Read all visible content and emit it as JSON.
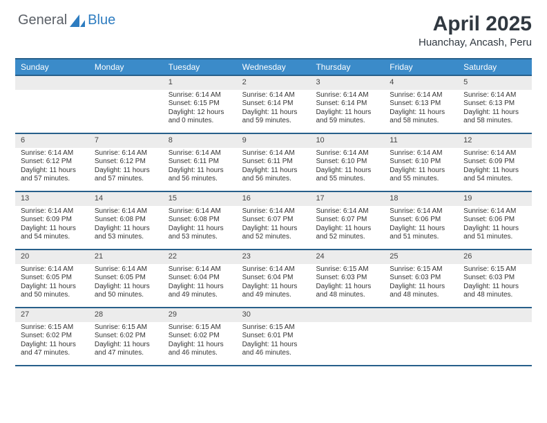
{
  "logo": {
    "word1": "General",
    "word2": "Blue"
  },
  "title": "April 2025",
  "location": "Huanchay, Ancash, Peru",
  "colors": {
    "header": "#3b8bc9",
    "rule": "#275f8a",
    "alt": "#ececec",
    "text": "#333333",
    "title": "#303840",
    "bg": "#ffffff"
  },
  "weekdays": [
    "Sunday",
    "Monday",
    "Tuesday",
    "Wednesday",
    "Thursday",
    "Friday",
    "Saturday"
  ],
  "leadingBlanks": 2,
  "days": [
    {
      "n": 1,
      "l1": "Sunrise: 6:14 AM",
      "l2": "Sunset: 6:15 PM",
      "l3": "Daylight: 12 hours",
      "l4": "and 0 minutes."
    },
    {
      "n": 2,
      "l1": "Sunrise: 6:14 AM",
      "l2": "Sunset: 6:14 PM",
      "l3": "Daylight: 11 hours",
      "l4": "and 59 minutes."
    },
    {
      "n": 3,
      "l1": "Sunrise: 6:14 AM",
      "l2": "Sunset: 6:14 PM",
      "l3": "Daylight: 11 hours",
      "l4": "and 59 minutes."
    },
    {
      "n": 4,
      "l1": "Sunrise: 6:14 AM",
      "l2": "Sunset: 6:13 PM",
      "l3": "Daylight: 11 hours",
      "l4": "and 58 minutes."
    },
    {
      "n": 5,
      "l1": "Sunrise: 6:14 AM",
      "l2": "Sunset: 6:13 PM",
      "l3": "Daylight: 11 hours",
      "l4": "and 58 minutes."
    },
    {
      "n": 6,
      "l1": "Sunrise: 6:14 AM",
      "l2": "Sunset: 6:12 PM",
      "l3": "Daylight: 11 hours",
      "l4": "and 57 minutes."
    },
    {
      "n": 7,
      "l1": "Sunrise: 6:14 AM",
      "l2": "Sunset: 6:12 PM",
      "l3": "Daylight: 11 hours",
      "l4": "and 57 minutes."
    },
    {
      "n": 8,
      "l1": "Sunrise: 6:14 AM",
      "l2": "Sunset: 6:11 PM",
      "l3": "Daylight: 11 hours",
      "l4": "and 56 minutes."
    },
    {
      "n": 9,
      "l1": "Sunrise: 6:14 AM",
      "l2": "Sunset: 6:11 PM",
      "l3": "Daylight: 11 hours",
      "l4": "and 56 minutes."
    },
    {
      "n": 10,
      "l1": "Sunrise: 6:14 AM",
      "l2": "Sunset: 6:10 PM",
      "l3": "Daylight: 11 hours",
      "l4": "and 55 minutes."
    },
    {
      "n": 11,
      "l1": "Sunrise: 6:14 AM",
      "l2": "Sunset: 6:10 PM",
      "l3": "Daylight: 11 hours",
      "l4": "and 55 minutes."
    },
    {
      "n": 12,
      "l1": "Sunrise: 6:14 AM",
      "l2": "Sunset: 6:09 PM",
      "l3": "Daylight: 11 hours",
      "l4": "and 54 minutes."
    },
    {
      "n": 13,
      "l1": "Sunrise: 6:14 AM",
      "l2": "Sunset: 6:09 PM",
      "l3": "Daylight: 11 hours",
      "l4": "and 54 minutes."
    },
    {
      "n": 14,
      "l1": "Sunrise: 6:14 AM",
      "l2": "Sunset: 6:08 PM",
      "l3": "Daylight: 11 hours",
      "l4": "and 53 minutes."
    },
    {
      "n": 15,
      "l1": "Sunrise: 6:14 AM",
      "l2": "Sunset: 6:08 PM",
      "l3": "Daylight: 11 hours",
      "l4": "and 53 minutes."
    },
    {
      "n": 16,
      "l1": "Sunrise: 6:14 AM",
      "l2": "Sunset: 6:07 PM",
      "l3": "Daylight: 11 hours",
      "l4": "and 52 minutes."
    },
    {
      "n": 17,
      "l1": "Sunrise: 6:14 AM",
      "l2": "Sunset: 6:07 PM",
      "l3": "Daylight: 11 hours",
      "l4": "and 52 minutes."
    },
    {
      "n": 18,
      "l1": "Sunrise: 6:14 AM",
      "l2": "Sunset: 6:06 PM",
      "l3": "Daylight: 11 hours",
      "l4": "and 51 minutes."
    },
    {
      "n": 19,
      "l1": "Sunrise: 6:14 AM",
      "l2": "Sunset: 6:06 PM",
      "l3": "Daylight: 11 hours",
      "l4": "and 51 minutes."
    },
    {
      "n": 20,
      "l1": "Sunrise: 6:14 AM",
      "l2": "Sunset: 6:05 PM",
      "l3": "Daylight: 11 hours",
      "l4": "and 50 minutes."
    },
    {
      "n": 21,
      "l1": "Sunrise: 6:14 AM",
      "l2": "Sunset: 6:05 PM",
      "l3": "Daylight: 11 hours",
      "l4": "and 50 minutes."
    },
    {
      "n": 22,
      "l1": "Sunrise: 6:14 AM",
      "l2": "Sunset: 6:04 PM",
      "l3": "Daylight: 11 hours",
      "l4": "and 49 minutes."
    },
    {
      "n": 23,
      "l1": "Sunrise: 6:14 AM",
      "l2": "Sunset: 6:04 PM",
      "l3": "Daylight: 11 hours",
      "l4": "and 49 minutes."
    },
    {
      "n": 24,
      "l1": "Sunrise: 6:15 AM",
      "l2": "Sunset: 6:03 PM",
      "l3": "Daylight: 11 hours",
      "l4": "and 48 minutes."
    },
    {
      "n": 25,
      "l1": "Sunrise: 6:15 AM",
      "l2": "Sunset: 6:03 PM",
      "l3": "Daylight: 11 hours",
      "l4": "and 48 minutes."
    },
    {
      "n": 26,
      "l1": "Sunrise: 6:15 AM",
      "l2": "Sunset: 6:03 PM",
      "l3": "Daylight: 11 hours",
      "l4": "and 48 minutes."
    },
    {
      "n": 27,
      "l1": "Sunrise: 6:15 AM",
      "l2": "Sunset: 6:02 PM",
      "l3": "Daylight: 11 hours",
      "l4": "and 47 minutes."
    },
    {
      "n": 28,
      "l1": "Sunrise: 6:15 AM",
      "l2": "Sunset: 6:02 PM",
      "l3": "Daylight: 11 hours",
      "l4": "and 47 minutes."
    },
    {
      "n": 29,
      "l1": "Sunrise: 6:15 AM",
      "l2": "Sunset: 6:02 PM",
      "l3": "Daylight: 11 hours",
      "l4": "and 46 minutes."
    },
    {
      "n": 30,
      "l1": "Sunrise: 6:15 AM",
      "l2": "Sunset: 6:01 PM",
      "l3": "Daylight: 11 hours",
      "l4": "and 46 minutes."
    }
  ]
}
